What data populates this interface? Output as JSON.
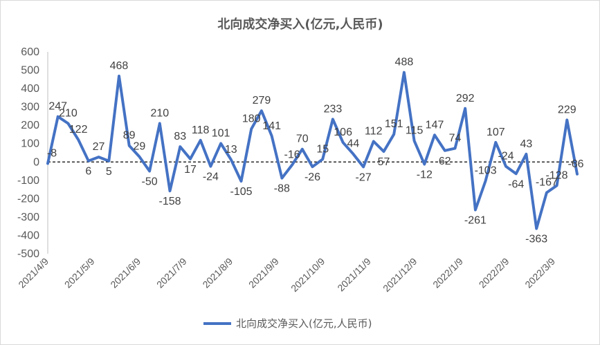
{
  "chart_data": {
    "type": "line",
    "title": "北向成交净买入(亿元,人民币)",
    "xlabel": "",
    "ylabel": "",
    "ylim": [
      -500,
      600
    ],
    "y_ticks": [
      "-500",
      "-400",
      "-300",
      "-200",
      "-100",
      "0",
      "100",
      "200",
      "300",
      "400",
      "500",
      "600"
    ],
    "x_tick_labels": [
      "2021/4/9",
      "2021/5/9",
      "2021/6/9",
      "2021/7/9",
      "2021/8/9",
      "2021/9/9",
      "2021/10/9",
      "2021/11/9",
      "2021/12/9",
      "2022/1/9",
      "2022/2/9",
      "2022/3/9"
    ],
    "grid": false,
    "zero_line": "dashed",
    "legend_position": "bottom",
    "line_color": "#4472c4",
    "series": [
      {
        "name": "北向成交净买入(亿元,人民币)",
        "values": [
          -8,
          247,
          210,
          122,
          6,
          27,
          5,
          468,
          89,
          29,
          -50,
          210,
          -158,
          83,
          17,
          118,
          -24,
          101,
          13,
          -105,
          180,
          279,
          141,
          -88,
          -16,
          70,
          -26,
          15,
          233,
          106,
          44,
          -27,
          112,
          57,
          151,
          488,
          115,
          -12,
          147,
          62,
          74,
          292,
          -261,
          -103,
          107,
          -24,
          -64,
          43,
          -363,
          -167,
          -128,
          229,
          -66
        ],
        "labels": [
          "-8",
          "247",
          "210",
          "122",
          "6",
          "27",
          "5",
          "468",
          "89",
          "29",
          "-50",
          "210",
          "-158",
          "83",
          "17",
          "118",
          "-24",
          "101",
          "13",
          "-105",
          "180",
          "279",
          "141",
          "-88",
          "-16",
          "70",
          "-26",
          "15",
          "233",
          "106",
          "44",
          "-27",
          "112",
          "57",
          "151",
          "488",
          "115",
          "-12",
          "147",
          "62",
          "74",
          "292",
          "-261",
          "-103",
          "107",
          "-24",
          "-64",
          "43",
          "-363",
          "-167",
          "-128",
          "229",
          "-66"
        ]
      }
    ]
  }
}
